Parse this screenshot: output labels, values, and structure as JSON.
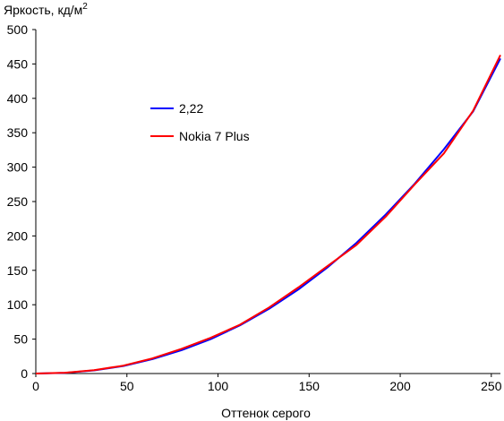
{
  "chart_data": {
    "type": "line",
    "title": "",
    "ylabel": "Яркость, кд/м",
    "ylabel_sup": "2",
    "xlabel": "Оттенок серого",
    "xlim": [
      0,
      255
    ],
    "ylim": [
      0,
      500
    ],
    "xticks": [
      0,
      50,
      100,
      150,
      200,
      250
    ],
    "yticks": [
      0,
      50,
      100,
      150,
      200,
      250,
      300,
      350,
      400,
      450,
      500
    ],
    "xtick_labels": [
      "0",
      "50",
      "100",
      "150",
      "200",
      "250"
    ],
    "ytick_labels": [
      "0",
      "50",
      "100",
      "150",
      "200",
      "250",
      "300",
      "350",
      "400",
      "450",
      "500"
    ],
    "grid": false,
    "legend": {
      "placement": "top-left"
    },
    "series": [
      {
        "name": "2,22",
        "color": "#0000ff",
        "x": [
          0,
          16,
          32,
          48,
          64,
          80,
          96,
          112,
          128,
          144,
          160,
          176,
          192,
          208,
          224,
          240,
          255
        ],
        "y": [
          0,
          1.0,
          4.5,
          11,
          21,
          34,
          50,
          70,
          94,
          122,
          154,
          190,
          231,
          276,
          326,
          381,
          458
        ]
      },
      {
        "name": "Nokia 7 Plus",
        "color": "#ff0000",
        "x": [
          0,
          16,
          32,
          48,
          64,
          80,
          96,
          112,
          128,
          144,
          160,
          176,
          192,
          208,
          224,
          240,
          255
        ],
        "y": [
          0,
          1.2,
          5.0,
          11.5,
          22,
          36,
          52,
          71,
          96,
          125,
          156,
          187,
          228,
          275,
          320,
          382,
          463
        ]
      }
    ]
  }
}
